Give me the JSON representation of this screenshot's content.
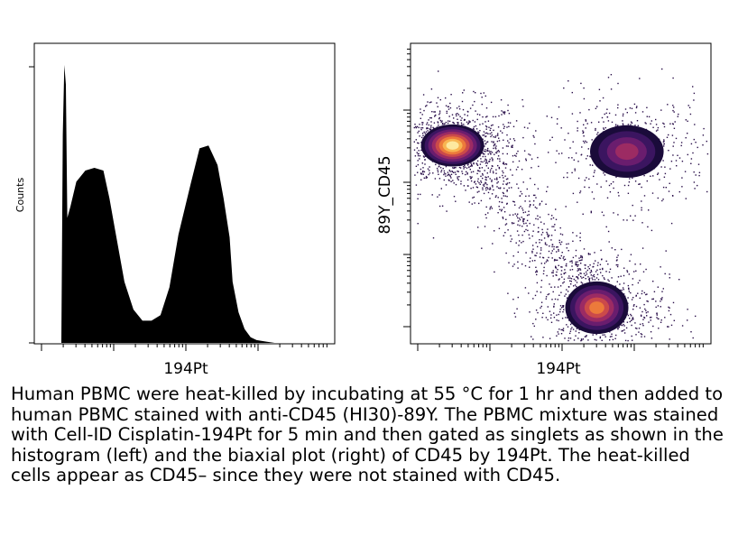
{
  "chart_data": [
    {
      "type": "area",
      "panel": "left",
      "xlabel": "194Pt",
      "ylabel": "Counts",
      "x_scale": "log",
      "xlim": [
        0,
        1
      ],
      "ylim": [
        0,
        1
      ],
      "x_ticks_labeled": false,
      "y_ticks_labeled": false,
      "x": [
        0.09,
        0.095,
        0.1,
        0.105,
        0.11,
        0.12,
        0.14,
        0.17,
        0.2,
        0.23,
        0.25,
        0.27,
        0.3,
        0.33,
        0.36,
        0.39,
        0.42,
        0.45,
        0.48,
        0.52,
        0.55,
        0.58,
        0.61,
        0.63,
        0.65,
        0.66,
        0.68,
        0.7,
        0.72,
        0.74,
        0.77,
        0.8,
        0.85
      ],
      "values": [
        0.0,
        0.75,
        1.0,
        0.93,
        0.45,
        0.49,
        0.58,
        0.62,
        0.63,
        0.62,
        0.52,
        0.4,
        0.22,
        0.12,
        0.08,
        0.08,
        0.1,
        0.2,
        0.39,
        0.57,
        0.7,
        0.71,
        0.64,
        0.52,
        0.38,
        0.22,
        0.11,
        0.05,
        0.02,
        0.01,
        0.005,
        0.0,
        0.0
      ]
    },
    {
      "type": "heatmap",
      "panel": "right",
      "xlabel": "194Pt",
      "ylabel": "89Y_CD45",
      "x_scale": "log",
      "y_scale": "log",
      "xlim": [
        0,
        1
      ],
      "ylim": [
        0,
        1
      ],
      "colormap": [
        "#1a0b3a",
        "#3b1560",
        "#6a1d6e",
        "#9c2b63",
        "#cb4a4a",
        "#ec7a3b",
        "#f8b552",
        "#fde9a0"
      ],
      "populations": [
        {
          "x": 0.14,
          "y": 0.66,
          "sx": 0.06,
          "sy": 0.04,
          "weight": 1.0
        },
        {
          "x": 0.72,
          "y": 0.64,
          "sx": 0.07,
          "sy": 0.05,
          "weight": 0.55
        },
        {
          "x": 0.62,
          "y": 0.12,
          "sx": 0.06,
          "sy": 0.05,
          "weight": 0.8
        }
      ]
    }
  ],
  "caption": "Human PBMC were heat-killed by incubating at 55 °C for 1 hr and then added to human PBMC stained with anti-CD45 (HI30)-89Y. The PBMC mixture was stained with Cell-ID Cisplatin-194Pt for 5 min and then gated as singlets as shown in the histogram (left) and the biaxial plot (right) of CD45 by 194Pt. The heat-killed cells appear as CD45– since they were not stained with CD45."
}
